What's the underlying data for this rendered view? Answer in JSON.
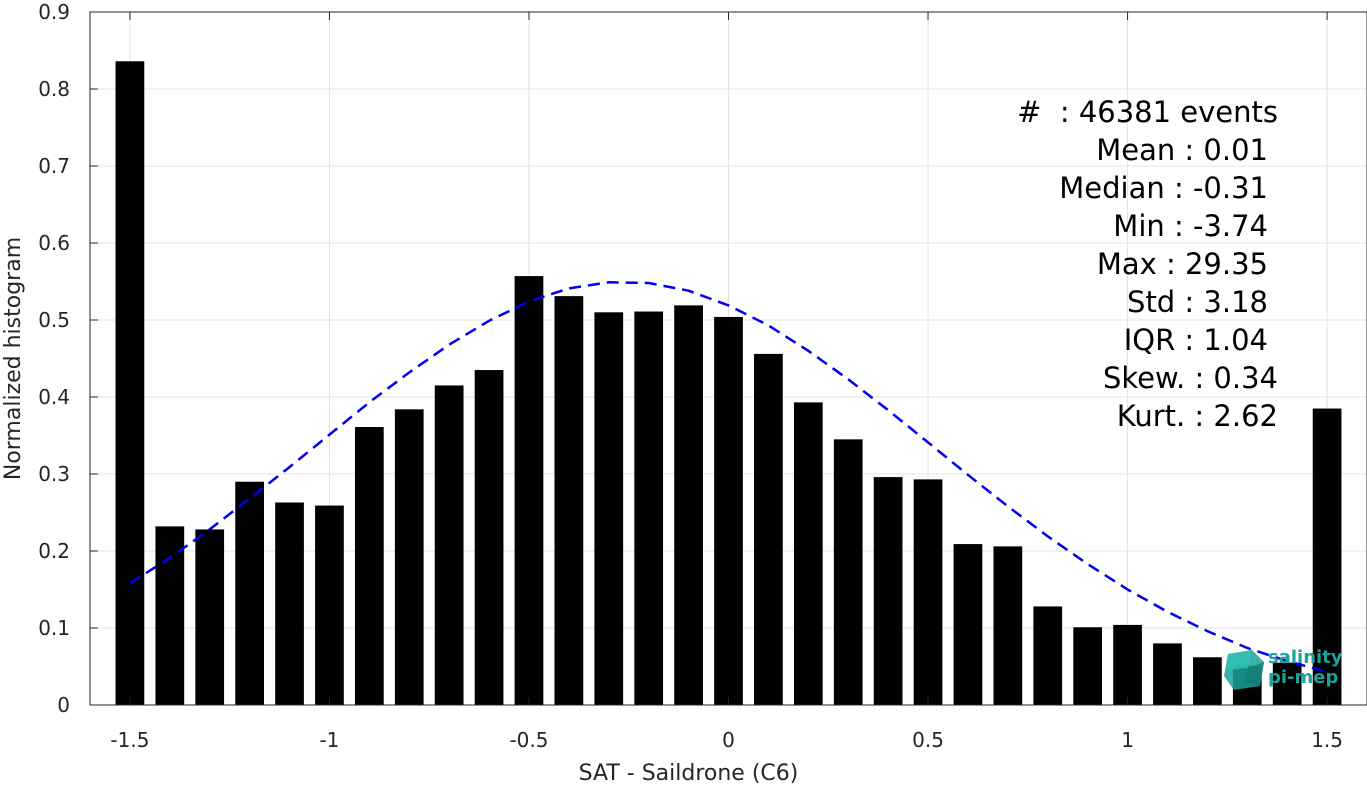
{
  "chart_data": {
    "type": "bar",
    "xlabel": "SAT - Saildrone (C6)",
    "ylabel": "Normalized histogram",
    "xlim": [
      -1.6,
      1.6
    ],
    "ylim": [
      0,
      0.9
    ],
    "xticks": [
      "-1.5",
      "-1",
      "-0.5",
      "0",
      "0.5",
      "1",
      "1.5"
    ],
    "xtick_values": [
      -1.5,
      -1,
      -0.5,
      0,
      0.5,
      1,
      1.5
    ],
    "yticks": [
      "0",
      "0.1",
      "0.2",
      "0.3",
      "0.4",
      "0.5",
      "0.6",
      "0.7",
      "0.8",
      "0.9"
    ],
    "ytick_values": [
      0,
      0.1,
      0.2,
      0.3,
      0.4,
      0.5,
      0.6,
      0.7,
      0.8,
      0.9
    ],
    "grid": true,
    "bar_color": "#000000",
    "bins": [
      -1.5,
      -1.4,
      -1.3,
      -1.2,
      -1.1,
      -1.0,
      -0.9,
      -0.8,
      -0.7,
      -0.6,
      -0.5,
      -0.4,
      -0.3,
      -0.2,
      -0.1,
      0.0,
      0.1,
      0.2,
      0.3,
      0.4,
      0.5,
      0.6,
      0.7,
      0.8,
      0.9,
      1.0,
      1.1,
      1.2,
      1.3,
      1.4,
      1.5
    ],
    "values": [
      0.836,
      0.232,
      0.228,
      0.29,
      0.263,
      0.259,
      0.361,
      0.384,
      0.415,
      0.435,
      0.557,
      0.531,
      0.51,
      0.511,
      0.519,
      0.504,
      0.456,
      0.393,
      0.345,
      0.296,
      0.293,
      0.209,
      0.206,
      0.128,
      0.101,
      0.104,
      0.08,
      0.062,
      0.051,
      0.055,
      0.385
    ],
    "fit_curve": {
      "type": "gaussian",
      "color": "#0000ee",
      "style": "dashed",
      "x": [
        -1.5,
        -1.4,
        -1.3,
        -1.2,
        -1.1,
        -1.0,
        -0.9,
        -0.8,
        -0.7,
        -0.6,
        -0.5,
        -0.4,
        -0.3,
        -0.2,
        -0.1,
        0.0,
        0.1,
        0.2,
        0.3,
        0.4,
        0.5,
        0.6,
        0.7,
        0.8,
        0.9,
        1.0,
        1.1,
        1.2,
        1.3,
        1.4,
        1.5
      ],
      "y": [
        0.158,
        0.191,
        0.228,
        0.268,
        0.309,
        0.351,
        0.393,
        0.432,
        0.468,
        0.499,
        0.524,
        0.541,
        0.549,
        0.548,
        0.538,
        0.519,
        0.493,
        0.46,
        0.423,
        0.383,
        0.341,
        0.299,
        0.258,
        0.219,
        0.183,
        0.15,
        0.121,
        0.096,
        0.074,
        0.057,
        0.043
      ]
    }
  },
  "stats": [
    "#  : 46381 events",
    "Mean : 0.01",
    "Median : -0.31",
    "Min : -3.74",
    "Max : 29.35",
    "Std : 3.18",
    "IQR : 1.04",
    "Skew. : 0.34",
    "Kurt. : 2.62"
  ],
  "logo": {
    "line1": "salinity",
    "line2": "pi-mep",
    "color": "#1aa39a"
  }
}
